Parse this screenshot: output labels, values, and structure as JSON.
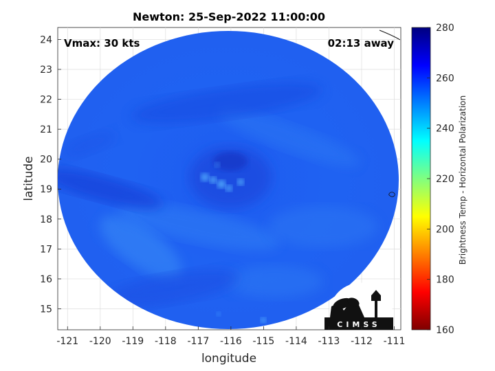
{
  "chart_data": {
    "type": "heatmap",
    "title": "Newton: 25-Sep-2022 11:00:00",
    "xlabel": "longitude",
    "ylabel": "latitude",
    "xlim": [
      -121.3,
      -110.8
    ],
    "ylim": [
      14.3,
      24.4
    ],
    "x_ticks": [
      -121,
      -120,
      -119,
      -118,
      -117,
      -116,
      -115,
      -114,
      -113,
      -112,
      -111
    ],
    "y_ticks": [
      15,
      16,
      17,
      18,
      19,
      20,
      21,
      22,
      23,
      24
    ],
    "grid": true,
    "annotations": {
      "vmax": "Vmax: 30 kts",
      "away": "02:13 away"
    },
    "storm_center": {
      "lon": -116.3,
      "lat": 19.1
    },
    "colorbar": {
      "label": "Brightness Temp - Horizontal Polarization",
      "range": [
        160,
        280
      ],
      "ticks": [
        160,
        180,
        200,
        220,
        240,
        260,
        280
      ],
      "colormap": "jet"
    },
    "field_summary": {
      "background_tb": 258,
      "cold_convective_cells_tb": 236,
      "note_regions": "mostly 250-265 K with cooler 240s near the core"
    }
  },
  "logo": {
    "text": "CIMSS"
  }
}
